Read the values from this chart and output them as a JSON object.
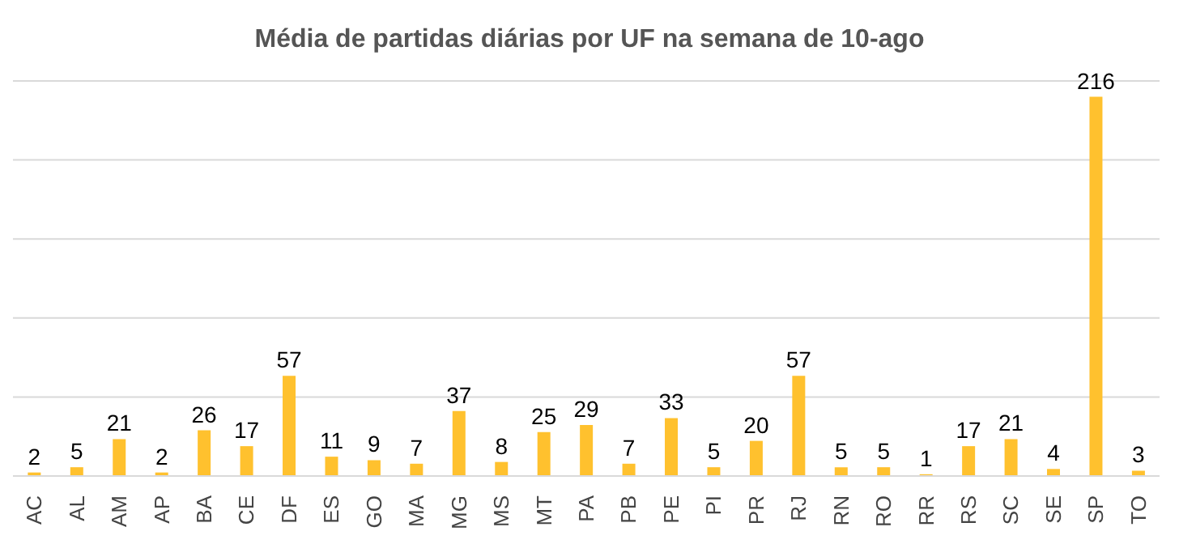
{
  "chart_data": {
    "type": "bar",
    "title": "Média de partidas diárias por UF na semana de 10-ago",
    "categories": [
      "AC",
      "AL",
      "AM",
      "AP",
      "BA",
      "CE",
      "DF",
      "ES",
      "GO",
      "MA",
      "MG",
      "MS",
      "MT",
      "PA",
      "PB",
      "PE",
      "PI",
      "PR",
      "RJ",
      "RN",
      "RO",
      "RR",
      "RS",
      "SC",
      "SE",
      "SP",
      "TO"
    ],
    "values": [
      2,
      5,
      21,
      2,
      26,
      17,
      57,
      11,
      9,
      7,
      37,
      8,
      25,
      29,
      7,
      33,
      5,
      20,
      57,
      5,
      5,
      1,
      17,
      21,
      4,
      216,
      3
    ],
    "color": "#ffc12e",
    "grid": "y",
    "data_labels": true,
    "tick_labels": "x"
  }
}
